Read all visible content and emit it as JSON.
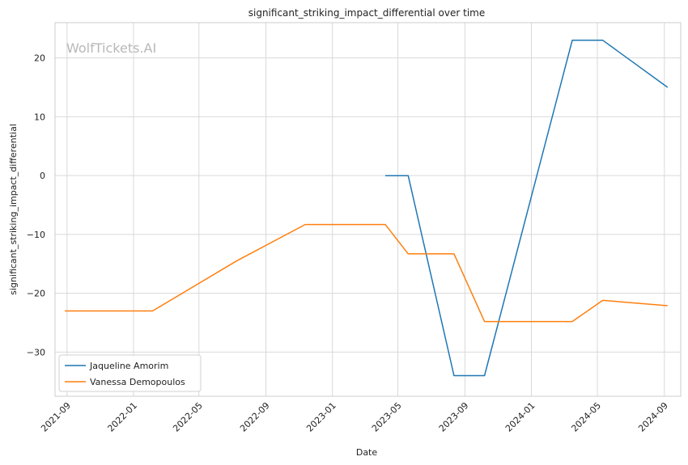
{
  "chart_data": {
    "type": "line",
    "title": "significant_striking_impact_differential over time",
    "xlabel": "Date",
    "ylabel": "significant_striking_impact_differential",
    "watermark": "WolfTickets.AI",
    "grid": true,
    "legend_placement": "lower-left",
    "x_ticks": [
      "2021-09",
      "2022-01",
      "2022-05",
      "2022-09",
      "2023-01",
      "2023-05",
      "2023-09",
      "2024-01",
      "2024-05",
      "2024-09"
    ],
    "y_ticks": [
      20,
      10,
      0,
      -10,
      -20,
      -30
    ],
    "y_tick_labels": [
      "20",
      "10",
      "0",
      "−10",
      "−20",
      "−30"
    ],
    "xlim": [
      "2021-08-10",
      "2024-10-01"
    ],
    "ylim": [
      -37.5,
      26
    ],
    "series": [
      {
        "name": "Jaqueline Amorim",
        "color": "#1f77b4",
        "points": [
          {
            "x": "2023-04-08",
            "y": 0
          },
          {
            "x": "2023-05-20",
            "y": 0
          },
          {
            "x": "2023-08-12",
            "y": -34
          },
          {
            "x": "2023-10-07",
            "y": -34
          },
          {
            "x": "2024-03-16",
            "y": 23
          },
          {
            "x": "2024-05-11",
            "y": 23
          },
          {
            "x": "2024-09-07",
            "y": 15
          }
        ]
      },
      {
        "name": "Vanessa Demopoulos",
        "color": "#ff7f0e",
        "points": [
          {
            "x": "2021-08-28",
            "y": -23
          },
          {
            "x": "2022-02-05",
            "y": -23
          },
          {
            "x": "2022-07-09",
            "y": -14.5
          },
          {
            "x": "2022-11-12",
            "y": -8.3
          },
          {
            "x": "2023-04-08",
            "y": -8.3
          },
          {
            "x": "2023-05-20",
            "y": -13.3
          },
          {
            "x": "2023-08-12",
            "y": -13.3
          },
          {
            "x": "2023-10-07",
            "y": -24.8
          },
          {
            "x": "2024-03-16",
            "y": -24.8
          },
          {
            "x": "2024-05-11",
            "y": -21.2
          },
          {
            "x": "2024-09-07",
            "y": -22.1
          }
        ]
      }
    ]
  }
}
